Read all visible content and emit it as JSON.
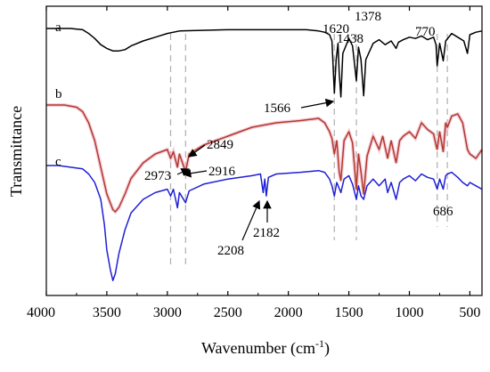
{
  "chart_data": {
    "type": "line",
    "title": "",
    "xlabel": "Wavenumber (cm",
    "xlabel_sup": "-1",
    "xlabel_close": ")",
    "ylabel": "Transmittance",
    "xlim": [
      4000,
      400
    ],
    "x_reversed": true,
    "x_ticks": [
      "4000",
      "3500",
      "3000",
      "2500",
      "2000",
      "1500",
      "1000",
      "500"
    ],
    "x_tick_values": [
      4000,
      3500,
      3000,
      2500,
      2000,
      1500,
      1000,
      500
    ],
    "y_ticks_shown": false,
    "grid": false,
    "legend": "none",
    "reference_lines": [
      2973,
      2849,
      1620,
      1438,
      770,
      686
    ],
    "series": [
      {
        "name": "a",
        "color": "#000000",
        "offset": 0.0,
        "points": [
          [
            4000,
            100
          ],
          [
            3800,
            100
          ],
          [
            3700,
            99
          ],
          [
            3650,
            96
          ],
          [
            3600,
            92
          ],
          [
            3550,
            87
          ],
          [
            3500,
            84
          ],
          [
            3450,
            82
          ],
          [
            3400,
            82
          ],
          [
            3350,
            83
          ],
          [
            3300,
            86
          ],
          [
            3200,
            90
          ],
          [
            3100,
            93
          ],
          [
            3000,
            96
          ],
          [
            2900,
            98
          ],
          [
            2500,
            99
          ],
          [
            2000,
            99
          ],
          [
            1850,
            99
          ],
          [
            1750,
            98
          ],
          [
            1700,
            97
          ],
          [
            1660,
            95
          ],
          [
            1640,
            90
          ],
          [
            1620,
            48
          ],
          [
            1605,
            75
          ],
          [
            1590,
            88
          ],
          [
            1580,
            65
          ],
          [
            1566,
            45
          ],
          [
            1550,
            80
          ],
          [
            1500,
            92
          ],
          [
            1470,
            86
          ],
          [
            1438,
            58
          ],
          [
            1420,
            85
          ],
          [
            1400,
            75
          ],
          [
            1378,
            46
          ],
          [
            1360,
            75
          ],
          [
            1300,
            88
          ],
          [
            1250,
            91
          ],
          [
            1200,
            87
          ],
          [
            1150,
            90
          ],
          [
            1110,
            84
          ],
          [
            1090,
            89
          ],
          [
            1050,
            91
          ],
          [
            1000,
            93
          ],
          [
            950,
            92
          ],
          [
            900,
            94
          ],
          [
            850,
            91
          ],
          [
            800,
            93
          ],
          [
            780,
            87
          ],
          [
            770,
            70
          ],
          [
            750,
            88
          ],
          [
            720,
            74
          ],
          [
            700,
            90
          ],
          [
            650,
            96
          ],
          [
            600,
            93
          ],
          [
            550,
            90
          ],
          [
            520,
            80
          ],
          [
            500,
            95
          ],
          [
            450,
            97
          ],
          [
            400,
            98
          ]
        ]
      },
      {
        "name": "b",
        "color": "#b03a2e",
        "offset": 0.0,
        "points": [
          [
            4000,
            100
          ],
          [
            3850,
            100
          ],
          [
            3750,
            99
          ],
          [
            3700,
            97
          ],
          [
            3650,
            92
          ],
          [
            3600,
            84
          ],
          [
            3550,
            72
          ],
          [
            3500,
            60
          ],
          [
            3450,
            53
          ],
          [
            3430,
            52
          ],
          [
            3400,
            54
          ],
          [
            3350,
            60
          ],
          [
            3300,
            67
          ],
          [
            3200,
            74
          ],
          [
            3100,
            78
          ],
          [
            3000,
            80
          ],
          [
            2973,
            76
          ],
          [
            2950,
            79
          ],
          [
            2916,
            72
          ],
          [
            2900,
            78
          ],
          [
            2849,
            70
          ],
          [
            2820,
            78
          ],
          [
            2700,
            82
          ],
          [
            2500,
            86
          ],
          [
            2300,
            90
          ],
          [
            2100,
            92
          ],
          [
            1900,
            93
          ],
          [
            1750,
            94
          ],
          [
            1700,
            92
          ],
          [
            1660,
            88
          ],
          [
            1640,
            85
          ],
          [
            1620,
            78
          ],
          [
            1600,
            84
          ],
          [
            1580,
            70
          ],
          [
            1566,
            66
          ],
          [
            1540,
            84
          ],
          [
            1500,
            88
          ],
          [
            1470,
            83
          ],
          [
            1438,
            62
          ],
          [
            1420,
            78
          ],
          [
            1400,
            70
          ],
          [
            1378,
            60
          ],
          [
            1350,
            77
          ],
          [
            1300,
            86
          ],
          [
            1250,
            80
          ],
          [
            1220,
            86
          ],
          [
            1180,
            76
          ],
          [
            1150,
            84
          ],
          [
            1110,
            74
          ],
          [
            1080,
            84
          ],
          [
            1050,
            86
          ],
          [
            1000,
            88
          ],
          [
            950,
            85
          ],
          [
            900,
            92
          ],
          [
            850,
            89
          ],
          [
            800,
            87
          ],
          [
            780,
            82
          ],
          [
            770,
            80
          ],
          [
            750,
            88
          ],
          [
            720,
            79
          ],
          [
            700,
            92
          ],
          [
            686,
            90
          ],
          [
            650,
            95
          ],
          [
            600,
            96
          ],
          [
            560,
            92
          ],
          [
            520,
            80
          ],
          [
            500,
            78
          ],
          [
            450,
            76
          ],
          [
            400,
            80
          ]
        ]
      },
      {
        "name": "c",
        "color": "#1f1fd6",
        "offset": 0.0,
        "points": [
          [
            4000,
            100
          ],
          [
            3900,
            100
          ],
          [
            3800,
            99
          ],
          [
            3700,
            98
          ],
          [
            3650,
            95
          ],
          [
            3600,
            90
          ],
          [
            3550,
            80
          ],
          [
            3520,
            65
          ],
          [
            3500,
            50
          ],
          [
            3470,
            38
          ],
          [
            3450,
            32
          ],
          [
            3430,
            36
          ],
          [
            3400,
            48
          ],
          [
            3350,
            62
          ],
          [
            3300,
            72
          ],
          [
            3200,
            80
          ],
          [
            3100,
            84
          ],
          [
            3000,
            86
          ],
          [
            2973,
            82
          ],
          [
            2950,
            86
          ],
          [
            2916,
            75
          ],
          [
            2900,
            84
          ],
          [
            2849,
            78
          ],
          [
            2820,
            85
          ],
          [
            2700,
            89
          ],
          [
            2500,
            92
          ],
          [
            2300,
            94
          ],
          [
            2230,
            95
          ],
          [
            2208,
            84
          ],
          [
            2195,
            92
          ],
          [
            2182,
            82
          ],
          [
            2165,
            93
          ],
          [
            2100,
            95
          ],
          [
            1900,
            96
          ],
          [
            1750,
            97
          ],
          [
            1700,
            96
          ],
          [
            1660,
            92
          ],
          [
            1640,
            88
          ],
          [
            1620,
            82
          ],
          [
            1600,
            90
          ],
          [
            1566,
            84
          ],
          [
            1540,
            92
          ],
          [
            1500,
            94
          ],
          [
            1470,
            89
          ],
          [
            1438,
            80
          ],
          [
            1420,
            88
          ],
          [
            1400,
            82
          ],
          [
            1378,
            80
          ],
          [
            1350,
            88
          ],
          [
            1300,
            92
          ],
          [
            1250,
            88
          ],
          [
            1200,
            92
          ],
          [
            1180,
            84
          ],
          [
            1150,
            90
          ],
          [
            1110,
            80
          ],
          [
            1080,
            90
          ],
          [
            1050,
            92
          ],
          [
            1000,
            94
          ],
          [
            950,
            91
          ],
          [
            900,
            95
          ],
          [
            850,
            93
          ],
          [
            800,
            92
          ],
          [
            780,
            88
          ],
          [
            770,
            86
          ],
          [
            750,
            92
          ],
          [
            720,
            86
          ],
          [
            700,
            94
          ],
          [
            686,
            95
          ],
          [
            650,
            96
          ],
          [
            600,
            93
          ],
          [
            560,
            90
          ],
          [
            520,
            88
          ],
          [
            500,
            90
          ],
          [
            450,
            88
          ],
          [
            400,
            86
          ]
        ]
      }
    ],
    "annotations": [
      {
        "text": "1620"
      },
      {
        "text": "1378"
      },
      {
        "text": "1438"
      },
      {
        "text": "770"
      },
      {
        "text": "1566"
      },
      {
        "text": "2849"
      },
      {
        "text": "2973"
      },
      {
        "text": "2916"
      },
      {
        "text": "686"
      },
      {
        "text": "2208"
      },
      {
        "text": "2182"
      }
    ]
  }
}
